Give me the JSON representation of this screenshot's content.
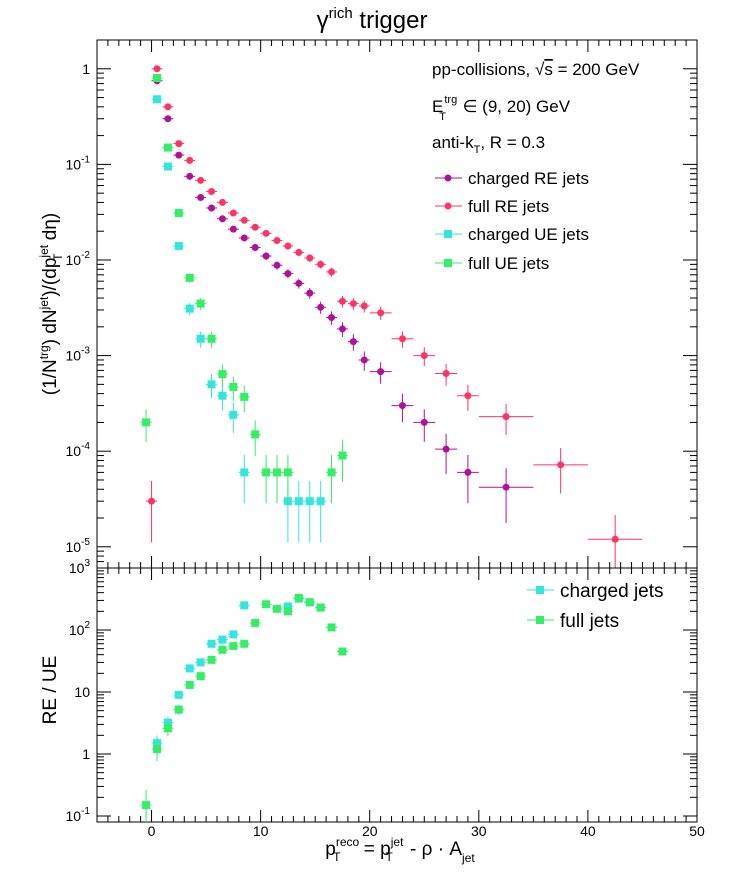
{
  "title": {
    "main": "γ",
    "sup": "rich",
    "rest": " trigger"
  },
  "colors": {
    "charged_re": "#b0109a",
    "full_re": "#ff3366",
    "charged_ue": "#33e6dc",
    "full_ue": "#33ee66"
  },
  "annotations": {
    "collisions_pre": "pp-collisions, ",
    "collisions_sqrt": "√",
    "collisions_s": "s",
    "collisions_post": " = 200 GeV",
    "et_main": "E",
    "et_sup": "trg",
    "et_sub": "T",
    "et_range": " ∈ (9, 20) GeV",
    "algo_pre": "anti-k",
    "algo_sub": "T",
    "algo_post": ", R = 0.3"
  },
  "legend_top": [
    "charged RE jets",
    "full RE jets",
    "charged UE jets",
    "full UE jets"
  ],
  "legend_bottom": [
    "charged jets",
    "full jets"
  ],
  "axis": {
    "x_ticks": [
      "0",
      "10",
      "20",
      "30",
      "40",
      "50"
    ],
    "top_y_ticks": [
      "10",
      "10",
      "10",
      "10",
      "10",
      "1"
    ],
    "top_y_exps": [
      "-5",
      "-4",
      "-3",
      "-2",
      "-1",
      ""
    ],
    "bottom_y_ticks": [
      "10",
      "1",
      "10",
      "10",
      "10"
    ],
    "bottom_y_exps": [
      "-1",
      "",
      "",
      "2",
      "3"
    ],
    "ylabel_top": "(1/N^trg) dN^jet)/(dp_T^jet dη)",
    "ylabel_bottom": "RE / UE",
    "xlabel": "p_T^reco = p_T^jet - ρ · A_jet"
  },
  "chart_data": [
    {
      "type": "scatter",
      "panel": "top",
      "yscale": "log",
      "xlim": [
        -5,
        50
      ],
      "ylim": [
        6e-06,
        2
      ],
      "series": [
        {
          "name": "charged RE jets",
          "color_key": "charged_re",
          "x": [
            0.5,
            1.5,
            2.5,
            3.5,
            4.5,
            5.5,
            6.5,
            7.5,
            8.5,
            9.5,
            10.5,
            11.5,
            12.5,
            13.5,
            14.5,
            15.5,
            16.5,
            17.5,
            18.5,
            19.5,
            21,
            23,
            25,
            27,
            29,
            32.5
          ],
          "y": [
            0.75,
            0.3,
            0.125,
            0.075,
            0.045,
            0.035,
            0.027,
            0.021,
            0.017,
            0.0135,
            0.011,
            0.0088,
            0.0072,
            0.0057,
            0.0045,
            0.0032,
            0.0025,
            0.0019,
            0.0014,
            0.0009,
            0.00068,
            0.0003,
            0.0002,
            0.000105,
            6e-05,
            4.2e-05
          ],
          "xerr": [
            0.5,
            0.5,
            0.5,
            0.5,
            0.5,
            0.5,
            0.5,
            0.5,
            0.5,
            0.5,
            0.5,
            0.5,
            0.5,
            0.5,
            0.5,
            0.5,
            0.5,
            0.5,
            0.5,
            0.5,
            1,
            1,
            1,
            1,
            1,
            2.5
          ]
        },
        {
          "name": "full RE jets",
          "color_key": "full_re",
          "x": [
            0,
            0.5,
            1.5,
            2.5,
            3.5,
            4.5,
            5.5,
            6.5,
            7.5,
            8.5,
            9.5,
            10.5,
            11.5,
            12.5,
            13.5,
            14.5,
            15.5,
            16.5,
            17.5,
            18.5,
            19.5,
            21,
            23,
            25,
            27,
            29,
            32.5,
            37.5,
            42.5
          ],
          "y": [
            3e-05,
            1.0,
            0.4,
            0.165,
            0.11,
            0.068,
            0.052,
            0.04,
            0.031,
            0.026,
            0.022,
            0.019,
            0.016,
            0.014,
            0.012,
            0.0105,
            0.009,
            0.0075,
            0.0037,
            0.0035,
            0.0033,
            0.0028,
            0.0015,
            0.001,
            0.00065,
            0.00038,
            0.00023,
            7.2e-05,
            1.2e-05
          ],
          "xerr": [
            0.5,
            0.5,
            0.5,
            0.5,
            0.5,
            0.5,
            0.5,
            0.5,
            0.5,
            0.5,
            0.5,
            0.5,
            0.5,
            0.5,
            0.5,
            0.5,
            0.5,
            0.5,
            0.5,
            0.5,
            0.5,
            1,
            1,
            1,
            1,
            1,
            2.5,
            2.5,
            2.5
          ]
        },
        {
          "name": "charged UE jets",
          "color_key": "charged_ue",
          "x": [
            0.5,
            1.5,
            2.5,
            3.5,
            4.5,
            5.5,
            6.5,
            7.5,
            8.5,
            12.5,
            13.5,
            14.5,
            15.5
          ],
          "y": [
            0.48,
            0.095,
            0.014,
            0.0031,
            0.0015,
            0.0005,
            0.00038,
            0.00024,
            6e-05,
            3e-05,
            3e-05,
            3e-05,
            3e-05
          ],
          "xerr": [
            0.5,
            0.5,
            0.5,
            0.5,
            0.5,
            0.5,
            0.5,
            0.5,
            0.5,
            0.5,
            0.5,
            0.5,
            0.5
          ]
        },
        {
          "name": "full UE jets",
          "color_key": "full_ue",
          "x": [
            -0.5,
            0.5,
            1.5,
            2.5,
            3.5,
            4.5,
            5.5,
            6.5,
            7.5,
            8.5,
            9.5,
            10.5,
            11.5,
            12.5,
            16.5,
            17.5
          ],
          "y": [
            0.0002,
            0.8,
            0.15,
            0.031,
            0.0065,
            0.0035,
            0.0015,
            0.00064,
            0.00047,
            0.00037,
            0.00015,
            6e-05,
            6e-05,
            6e-05,
            6e-05,
            9e-05
          ],
          "xerr": [
            0.5,
            0.5,
            0.5,
            0.5,
            0.5,
            0.5,
            0.5,
            0.5,
            0.5,
            0.5,
            0.5,
            0.5,
            0.5,
            0.5,
            0.5,
            0.5
          ]
        }
      ]
    },
    {
      "type": "scatter",
      "panel": "bottom",
      "yscale": "log",
      "xlim": [
        -5,
        50
      ],
      "ylim": [
        0.08,
        1000
      ],
      "series": [
        {
          "name": "charged jets",
          "color_key": "charged_ue",
          "x": [
            0.5,
            1.5,
            2.5,
            3.5,
            4.5,
            5.5,
            6.5,
            7.5,
            8.5,
            12.5,
            13.5,
            14.5,
            15.5
          ],
          "y": [
            1.5,
            3.2,
            9,
            24,
            30,
            60,
            70,
            85,
            250,
            240,
            320,
            280,
            230
          ],
          "xerr": [
            0.5,
            0.5,
            0.5,
            0.5,
            0.5,
            0.5,
            0.5,
            0.5,
            0.5,
            0.5,
            0.5,
            0.5,
            0.5
          ]
        },
        {
          "name": "full jets",
          "color_key": "full_ue",
          "x": [
            -0.5,
            0.5,
            1.5,
            2.5,
            3.5,
            4.5,
            5.5,
            6.5,
            7.5,
            8.5,
            9.5,
            10.5,
            11.5,
            12.5,
            13.5,
            14.5,
            15.5,
            16.5,
            17.5
          ],
          "y": [
            0.15,
            1.2,
            2.6,
            5.2,
            13,
            18,
            33,
            48,
            55,
            60,
            130,
            260,
            220,
            200,
            330,
            280,
            230,
            110,
            45
          ],
          "xerr": [
            0.5,
            0.5,
            0.5,
            0.5,
            0.5,
            0.5,
            0.5,
            0.5,
            0.5,
            0.5,
            0.5,
            0.5,
            0.5,
            0.5,
            0.5,
            0.5,
            0.5,
            0.5,
            0.5
          ]
        }
      ]
    }
  ]
}
